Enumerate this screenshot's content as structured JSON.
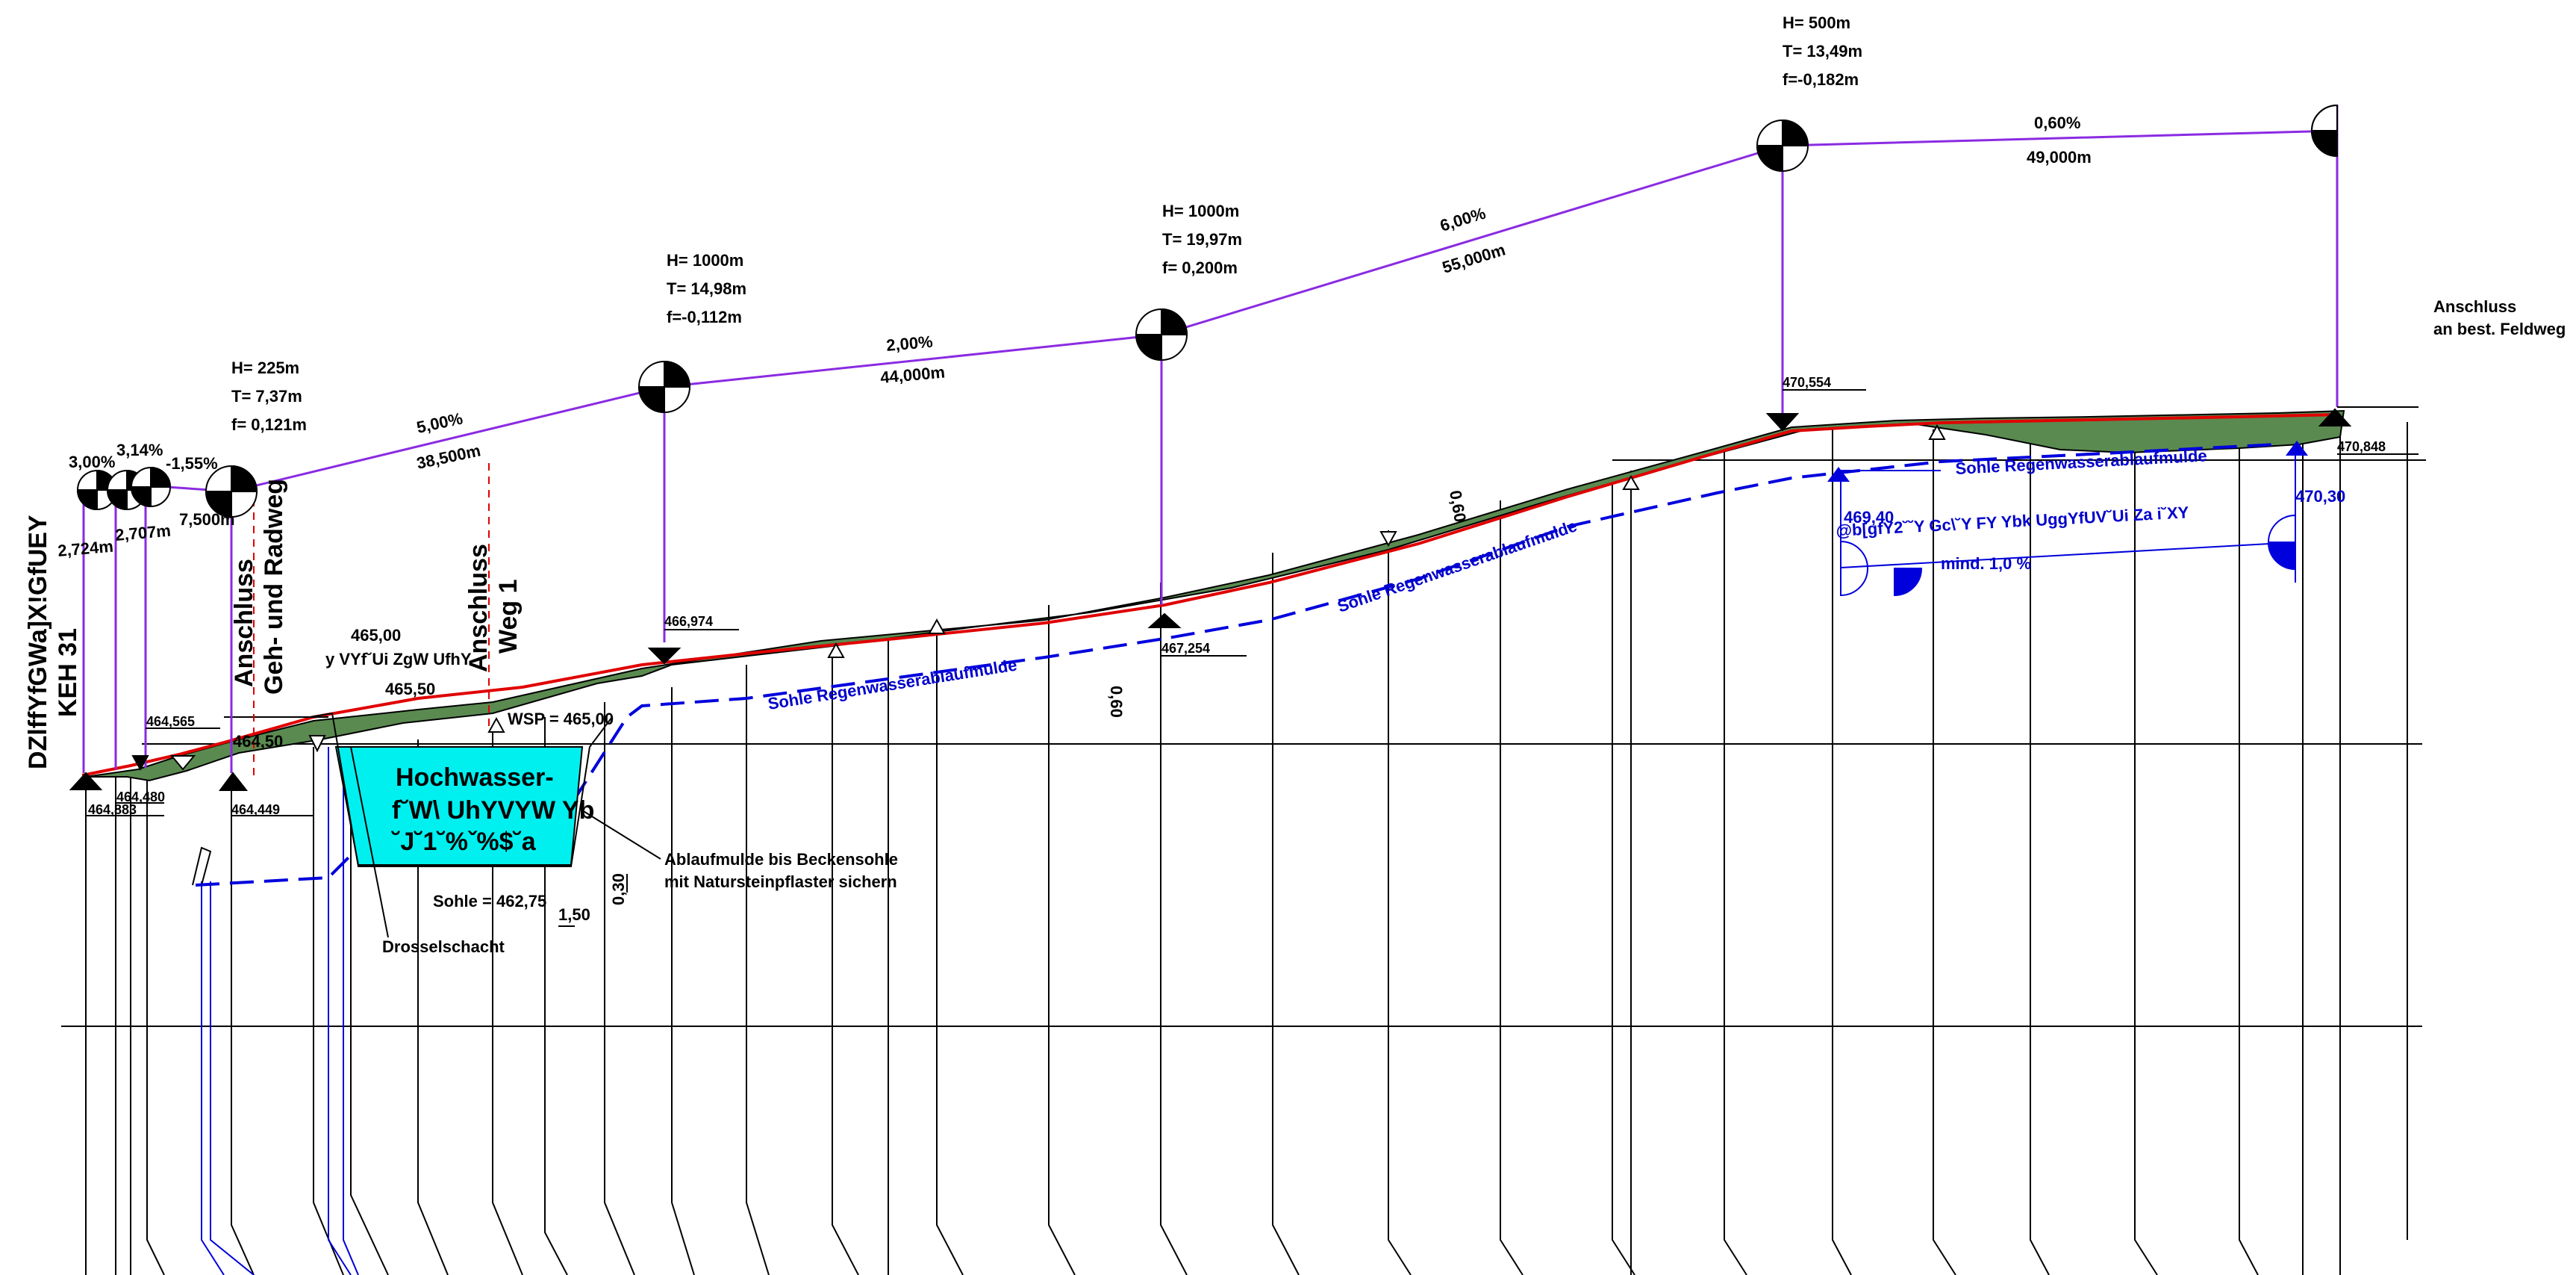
{
  "left_title": {
    "line1": "DZlffYfGWa]X!GfUEY",
    "line2": "KEH 31"
  },
  "connection_left": {
    "line1": "Anschluss",
    "line2": "Geh- und Radweg"
  },
  "connection_weg1": {
    "line1": "Anschluss",
    "line2": "Weg 1"
  },
  "connection_right": {
    "line1": "Anschluss",
    "line2": "an best. Feldweg"
  },
  "curves": [
    {
      "h": "H=  225m",
      "t": "T=  7,37m",
      "f": "f= 0,121m"
    },
    {
      "h": "H=  1000m",
      "t": "T= 14,98m",
      "f": "f=-0,112m"
    },
    {
      "h": "H=  1000m",
      "t": "T= 19,97m",
      "f": "f= 0,200m"
    },
    {
      "h": "H=   500m",
      "t": "T= 13,49m",
      "f": "f=-0,182m"
    }
  ],
  "grades": [
    {
      "pct": "3,00%",
      "len": "2,724m"
    },
    {
      "pct": "3,14%",
      "len": "2,707m"
    },
    {
      "pct": "-1,55%",
      "len": "7,500m"
    },
    {
      "pct": "5,00%",
      "len": "38,500m"
    },
    {
      "pct": "2,00%",
      "len": "44,000m"
    },
    {
      "pct": "6,00%",
      "len": "55,000m"
    },
    {
      "pct": "0,60%",
      "len": "49,000m"
    }
  ],
  "elevations": {
    "e464_883": "464,883",
    "e464_480": "464,480",
    "e464_565": "464,565",
    "e464_449": "464,449",
    "e464_50": "464,50",
    "e465_00": "465,00",
    "e465_50": "465,50",
    "e466_974": "466,974",
    "e467_254": "467,254",
    "e470_554": "470,554",
    "e470_848": "470,848",
    "e469_40": "469,40",
    "e470_30": "470,30"
  },
  "basin": {
    "line1": "Hochwasser-",
    "line2": "f˘W\\ UhYVYW Yb",
    "line3": "˘J˘1˘%ˇ%$˘a",
    "wsp": "WSP = 465,00",
    "sohle": "Sohle = 462,75",
    "dim_030": "0,30",
    "dim_150": "1,50",
    "garbled_top": "y VYf˘Ui ZgW UfhY",
    "drossel": "Drosselschacht",
    "outlet_line1": "Ablaufmulde bis Beckensohle",
    "outlet_line2": "mit Natursteinpflaster sichern"
  },
  "sohle_labels": {
    "a": "Sohle Regenwasserablaufmulde",
    "b": "Sohle Regenwasserablaufmulde",
    "c": "Sohle Regenwasserablaufmulde"
  },
  "blue_note": {
    "line1": "@b[gfY2˘˘Y Gc\\˘Y FY Ybk UggYfUV˘Ui Za i˘XY",
    "line2": "mind.   1,0 %"
  },
  "dims": {
    "d060a": "0,60",
    "d060b": "0,60"
  }
}
